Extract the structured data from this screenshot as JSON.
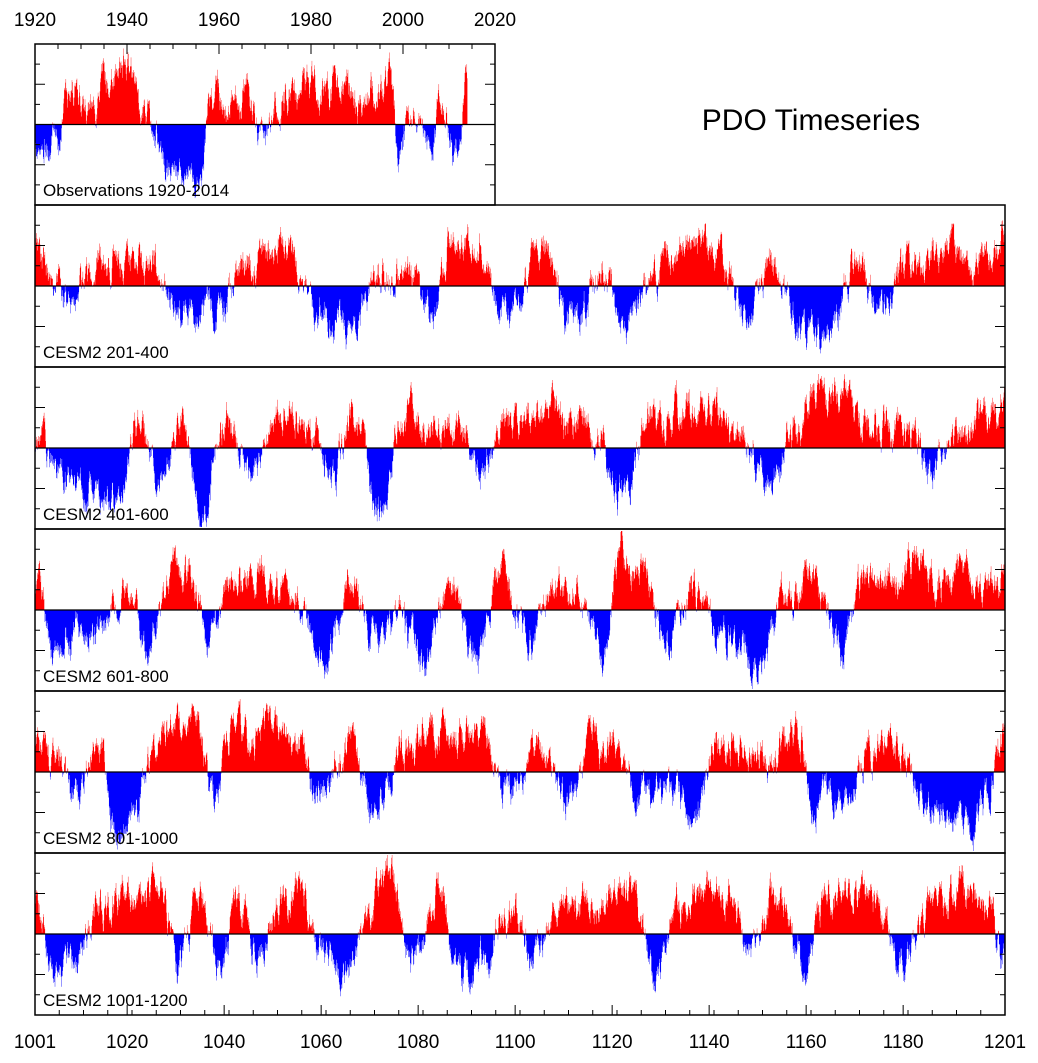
{
  "chart_data": {
    "type": "area",
    "title": "PDO Timeseries",
    "colors": {
      "positive": "#ff0000",
      "negative": "#0000ff",
      "axis": "#000000"
    },
    "observations": {
      "label": "Observations 1920-2014",
      "xlim": [
        1920,
        2020
      ],
      "xticks": [
        "1920",
        "1940",
        "1960",
        "1980",
        "2000",
        "2020"
      ],
      "ylim": [
        -2,
        2
      ],
      "period": [
        1920,
        2014
      ]
    },
    "model_panels": [
      {
        "label": "CESM2 201-400"
      },
      {
        "label": "CESM2 401-600"
      },
      {
        "label": "CESM2 601-800"
      },
      {
        "label": "CESM2 801-1000"
      },
      {
        "label": "CESM2 1001-1200"
      }
    ],
    "model_axis": {
      "xlim": [
        1001,
        1201
      ],
      "xticks": [
        "1001",
        "1020",
        "1040",
        "1060",
        "1080",
        "1100",
        "1120",
        "1140",
        "1160",
        "1180",
        "1201"
      ],
      "ylim": [
        -2,
        2
      ]
    },
    "series_anchors": [
      {
        "x": [
          1920,
          1925,
          1928,
          1932,
          1936,
          1940,
          1943,
          1946,
          1950,
          1953,
          1956,
          1958,
          1962,
          1966,
          1970,
          1973,
          1976,
          1979,
          1983,
          1986,
          1990,
          1994,
          1997,
          1999,
          2002,
          2006,
          2008,
          2011,
          2014
        ],
        "y": [
          -0.6,
          -0.5,
          1.0,
          0.3,
          1.1,
          1.6,
          0.5,
          -0.4,
          -1.2,
          -1.1,
          -1.4,
          0.8,
          0.4,
          0.7,
          -0.4,
          0.6,
          0.8,
          1.0,
          0.9,
          1.2,
          0.4,
          0.9,
          1.3,
          -0.6,
          0.5,
          -0.8,
          0.7,
          -0.7,
          1.0
        ]
      },
      {
        "x": [
          1001,
          1008,
          1015,
          1025,
          1032,
          1038,
          1045,
          1052,
          1059,
          1066,
          1072,
          1078,
          1083,
          1087,
          1092,
          1098,
          1105,
          1112,
          1118,
          1122,
          1130,
          1136,
          1140,
          1147,
          1153,
          1160,
          1164,
          1170,
          1176,
          1182,
          1188,
          1195,
          1201
        ],
        "y": [
          0.8,
          -0.3,
          0.7,
          0.4,
          -0.9,
          -0.5,
          0.6,
          1.1,
          -0.6,
          -1.2,
          0.2,
          0.4,
          -0.8,
          1.3,
          1.0,
          -0.7,
          0.7,
          -0.9,
          0.3,
          -0.8,
          0.5,
          1.1,
          1.0,
          -0.6,
          0.4,
          -1.1,
          -1.3,
          0.7,
          -0.5,
          0.6,
          0.9,
          0.5,
          1.0
        ]
      },
      {
        "x": [
          1001,
          1006,
          1012,
          1017,
          1022,
          1027,
          1032,
          1035,
          1040,
          1046,
          1052,
          1057,
          1062,
          1067,
          1072,
          1077,
          1082,
          1088,
          1093,
          1099,
          1105,
          1111,
          1116,
          1122,
          1128,
          1134,
          1140,
          1146,
          1152,
          1157,
          1163,
          1169,
          1174,
          1180,
          1186,
          1192,
          1197,
          1201
        ],
        "y": [
          0.3,
          -0.7,
          -1.0,
          -1.3,
          0.5,
          -0.6,
          0.6,
          -1.5,
          0.7,
          -0.5,
          0.9,
          0.8,
          -0.8,
          1.0,
          -1.6,
          0.9,
          0.5,
          0.4,
          -0.6,
          0.7,
          1.1,
          0.6,
          0.5,
          -1.2,
          0.7,
          0.8,
          0.9,
          0.3,
          -1.0,
          0.5,
          1.3,
          1.0,
          0.7,
          0.4,
          -0.5,
          0.5,
          0.8,
          1.1
        ]
      },
      {
        "x": [
          1001,
          1005,
          1010,
          1015,
          1020,
          1024,
          1029,
          1034,
          1037,
          1042,
          1048,
          1053,
          1058,
          1061,
          1066,
          1071,
          1076,
          1081,
          1086,
          1092,
          1097,
          1103,
          1108,
          1113,
          1118,
          1122,
          1126,
          1131,
          1137,
          1142,
          1147,
          1150,
          1156,
          1161,
          1167,
          1172,
          1177,
          1182,
          1188,
          1193,
          1198,
          1201
        ],
        "y": [
          0.4,
          -0.8,
          -0.7,
          -0.4,
          0.9,
          -0.9,
          0.9,
          0.7,
          -1.0,
          0.7,
          0.8,
          0.6,
          -0.6,
          -1.2,
          0.9,
          -0.7,
          -0.5,
          -1.4,
          0.6,
          -1.2,
          0.9,
          -0.6,
          0.7,
          0.5,
          -1.1,
          1.4,
          0.9,
          -0.7,
          0.5,
          -0.5,
          -1.0,
          -1.3,
          0.4,
          0.9,
          -0.9,
          0.7,
          0.6,
          1.2,
          0.7,
          1.0,
          0.6,
          1.0
        ]
      },
      {
        "x": [
          1001,
          1004,
          1009,
          1014,
          1018,
          1021,
          1026,
          1030,
          1034,
          1038,
          1042,
          1046,
          1050,
          1055,
          1060,
          1066,
          1071,
          1077,
          1082,
          1088,
          1093,
          1099,
          1105,
          1110,
          1116,
          1121,
          1126,
          1132,
          1137,
          1142,
          1148,
          1153,
          1158,
          1162,
          1168,
          1173,
          1179,
          1184,
          1190,
          1195,
          1201
        ],
        "y": [
          0.8,
          0.5,
          -0.6,
          0.7,
          -1.8,
          -1.0,
          0.4,
          1.1,
          1.2,
          -0.7,
          1.1,
          0.9,
          1.3,
          0.7,
          -0.6,
          0.6,
          -0.7,
          0.5,
          1.0,
          0.9,
          0.8,
          -0.5,
          0.7,
          -0.7,
          0.8,
          0.7,
          -0.6,
          -0.5,
          -0.9,
          0.8,
          0.6,
          0.4,
          1.0,
          -0.8,
          -0.5,
          0.4,
          0.8,
          -0.6,
          -1.1,
          -1.3,
          0.9
        ]
      },
      {
        "x": [
          1001,
          1005,
          1009,
          1014,
          1019,
          1023,
          1027,
          1031,
          1035,
          1039,
          1043,
          1047,
          1051,
          1056,
          1060,
          1065,
          1070,
          1074,
          1079,
          1084,
          1089,
          1094,
          1099,
          1104,
          1109,
          1114,
          1119,
          1124,
          1129,
          1134,
          1139,
          1144,
          1149,
          1154,
          1159,
          1164,
          1170,
          1175,
          1180,
          1186,
          1192,
          1197,
          1201
        ],
        "y": [
          0.5,
          -0.8,
          -1.0,
          0.6,
          1.0,
          0.8,
          1.0,
          -0.7,
          1.0,
          -0.8,
          0.9,
          -0.6,
          0.8,
          1.0,
          -0.5,
          -1.0,
          0.5,
          1.4,
          -0.6,
          1.0,
          -1.1,
          -0.5,
          0.5,
          -0.6,
          0.6,
          0.7,
          0.9,
          1.0,
          -1.2,
          0.7,
          1.1,
          0.9,
          -0.5,
          0.9,
          -0.8,
          0.8,
          1.0,
          0.7,
          -0.7,
          0.6,
          1.0,
          0.8,
          -0.5
        ]
      }
    ]
  }
}
